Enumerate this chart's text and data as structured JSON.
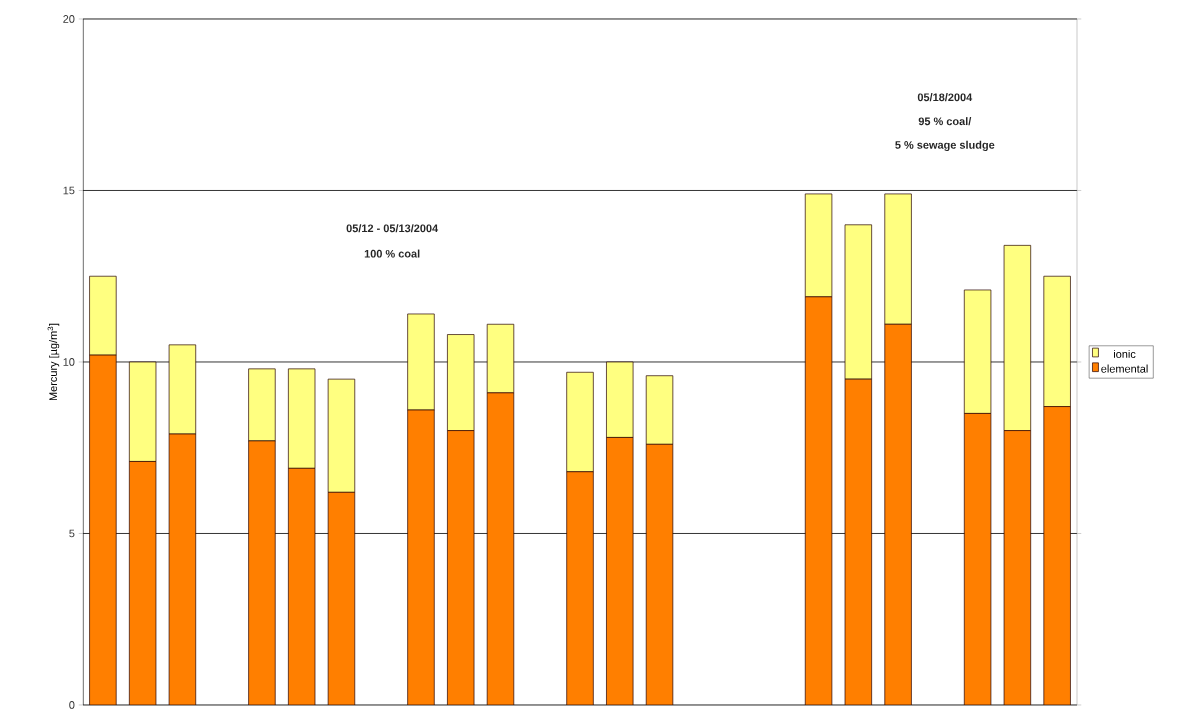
{
  "chart_data": {
    "type": "bar",
    "stacked": true,
    "ylabel": "Mercury [µg/m$^{3}$]",
    "categories": [
      null,
      null,
      null,
      null,
      null,
      null,
      null,
      null,
      null,
      null,
      null,
      null,
      null,
      null,
      null,
      null,
      null,
      null,
      null,
      null,
      null,
      null,
      null,
      null,
      null
    ],
    "series": [
      {
        "name": "elemental",
        "color": "#ff7f00",
        "values": [
          10.2,
          7.1,
          7.9,
          null,
          7.7,
          6.9,
          6.2,
          null,
          8.6,
          8.0,
          9.1,
          null,
          6.8,
          7.8,
          7.6,
          null,
          null,
          null,
          11.9,
          9.5,
          11.1,
          null,
          8.5,
          8.0,
          8.7
        ]
      },
      {
        "name": "ionic",
        "color": "#ffff80",
        "values": [
          2.3,
          2.9,
          2.6,
          null,
          2.1,
          2.9,
          3.3,
          null,
          2.8,
          2.8,
          2.0,
          null,
          2.9,
          2.2,
          2.0,
          null,
          null,
          null,
          3.0,
          4.5,
          3.8,
          null,
          3.6,
          5.4,
          3.8
        ]
      }
    ],
    "ylim": [
      0,
      20
    ],
    "yticks": [
      0,
      5,
      10,
      15,
      20
    ],
    "grid": "y",
    "legend": "right",
    "annotations": [
      "05/12 - 05/13/2004",
      "100 % coal",
      "05/18/2004",
      "95 % coal/",
      "5 % sewage sludge"
    ]
  }
}
